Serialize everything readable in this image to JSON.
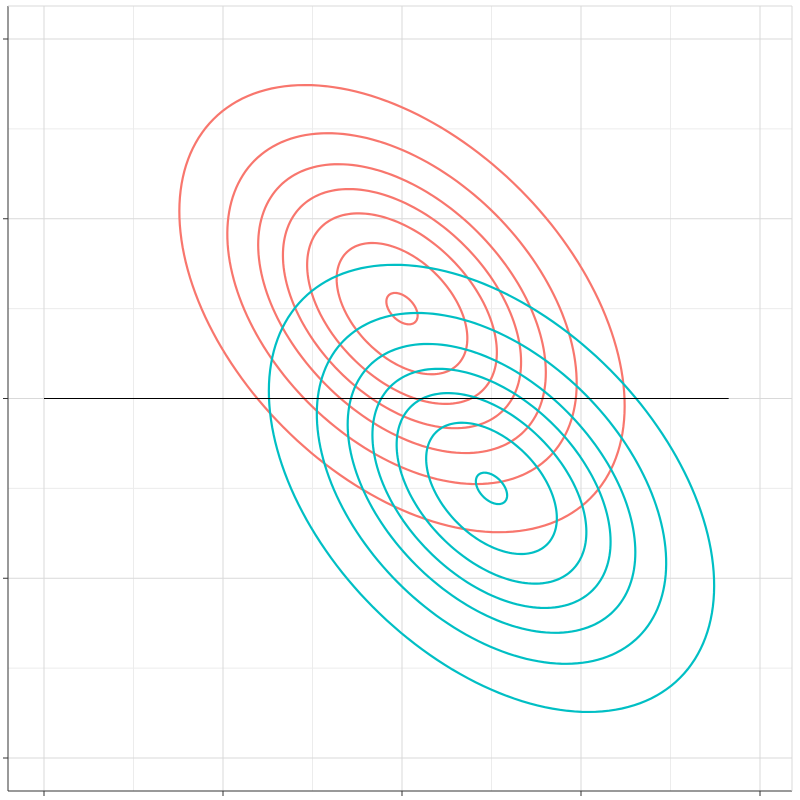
{
  "chart_data": {
    "type": "contour",
    "title": "",
    "xlabel": "",
    "ylabel": "",
    "xlim": [
      -4,
      4
    ],
    "ylim": [
      -4,
      4
    ],
    "x_major_ticks": [
      -4,
      -2,
      0,
      2,
      4
    ],
    "y_major_ticks": [
      -4,
      -2,
      0,
      2,
      4
    ],
    "x_minor_ticks": [
      -3,
      -1,
      1,
      3
    ],
    "y_minor_ticks": [
      -3,
      -1,
      1,
      3
    ],
    "grid": true,
    "legend": "none",
    "reference_line": {
      "y": 0,
      "x_from": -4,
      "x_to": 3.65
    },
    "series": [
      {
        "color": "#F8766D",
        "center": [
          0,
          1
        ],
        "rotation_deg": 45,
        "contours": [
          {
            "a": 2.98,
            "b": 1.87
          },
          {
            "a": 2.33,
            "b": 1.48
          },
          {
            "a": 1.93,
            "b": 1.2
          },
          {
            "a": 1.6,
            "b": 0.99
          },
          {
            "a": 1.28,
            "b": 0.78
          },
          {
            "a": 0.88,
            "b": 0.54
          },
          {
            "a": 0.21,
            "b": 0.13
          }
        ]
      },
      {
        "color": "#00BFC4",
        "center": [
          1,
          -1
        ],
        "rotation_deg": 45,
        "contours": [
          {
            "a": 2.98,
            "b": 1.87
          },
          {
            "a": 2.33,
            "b": 1.48
          },
          {
            "a": 1.93,
            "b": 1.2
          },
          {
            "a": 1.6,
            "b": 0.99
          },
          {
            "a": 1.28,
            "b": 0.78
          },
          {
            "a": 0.88,
            "b": 0.54
          },
          {
            "a": 0.21,
            "b": 0.13
          }
        ]
      }
    ]
  }
}
